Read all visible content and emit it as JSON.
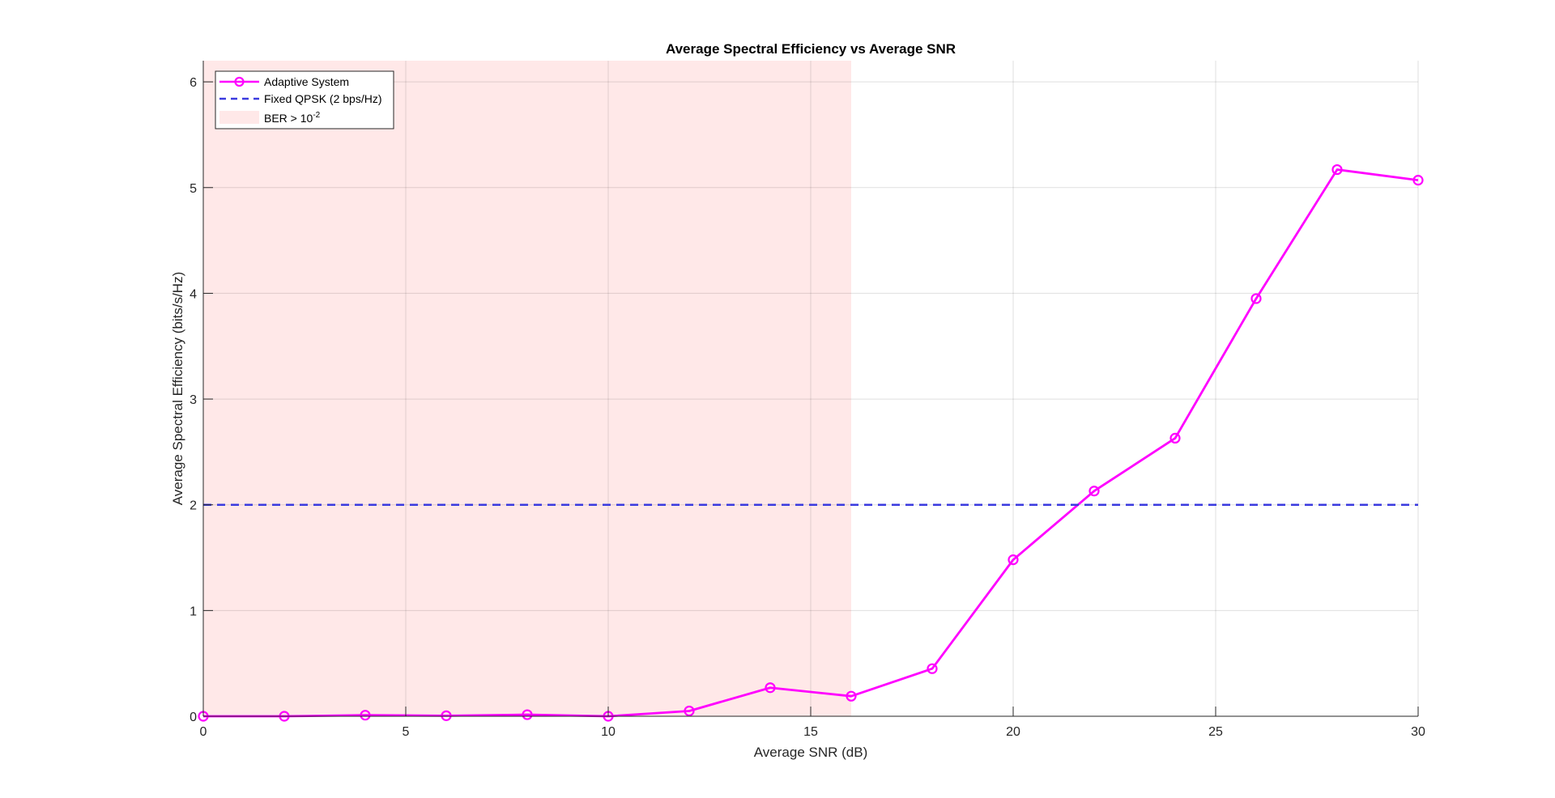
{
  "chart_data": {
    "type": "line",
    "title": "Average Spectral Efficiency vs Average SNR",
    "xlabel": "Average SNR (dB)",
    "ylabel": "Average Spectral Efficiency (bits/s/Hz)",
    "xlim": [
      0,
      30
    ],
    "ylim": [
      0,
      6.2
    ],
    "xticks": [
      0,
      5,
      10,
      15,
      20,
      25,
      30
    ],
    "yticks": [
      0,
      1,
      2,
      3,
      4,
      5,
      6
    ],
    "grid": true,
    "legend_position": "top-left",
    "shaded_region": {
      "name": "BER > 10",
      "name_sup": "-2",
      "x_start": 0,
      "x_end": 16,
      "color": "#ffe8e8"
    },
    "series": [
      {
        "name": "Adaptive System",
        "color": "#ff00ff",
        "style": "solid",
        "marker": "circle",
        "x": [
          0,
          2,
          4,
          6,
          8,
          10,
          12,
          14,
          16,
          18,
          20,
          22,
          24,
          26,
          28,
          30
        ],
        "y": [
          0.0,
          0.0,
          0.01,
          0.005,
          0.015,
          0.0,
          0.05,
          0.27,
          0.19,
          0.45,
          1.48,
          2.13,
          2.63,
          3.95,
          5.17,
          5.07
        ]
      },
      {
        "name": "Fixed QPSK (2 bps/Hz)",
        "color": "#3a3adf",
        "style": "dashed",
        "x": [
          0,
          30
        ],
        "y": [
          2,
          2
        ]
      }
    ]
  }
}
